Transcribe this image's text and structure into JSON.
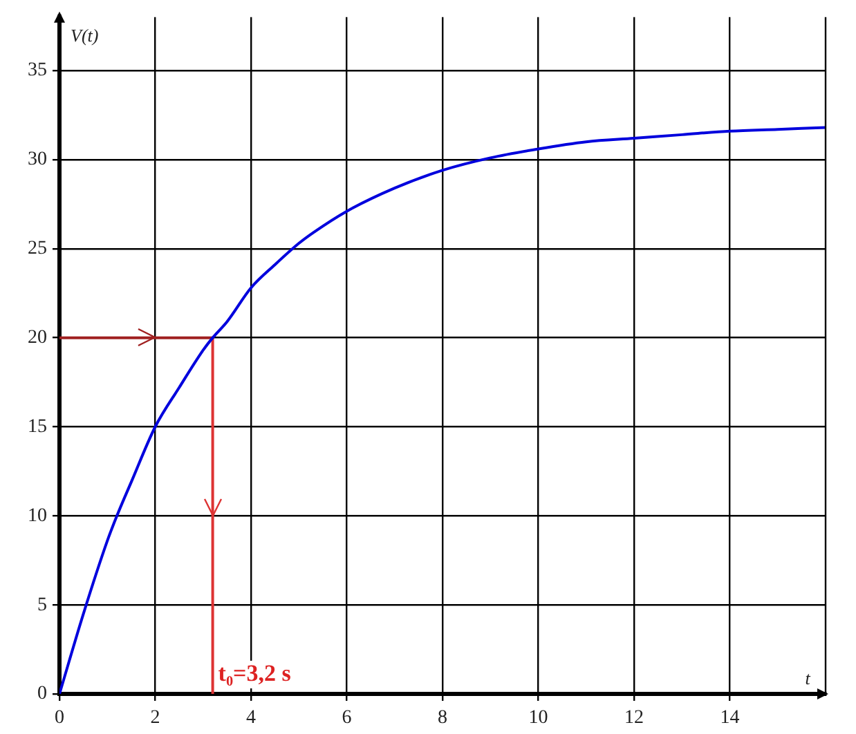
{
  "chart_data": {
    "type": "line",
    "xlabel": "t",
    "ylabel": "V(t)",
    "xlim": [
      0,
      16
    ],
    "ylim": [
      0,
      38
    ],
    "xticks": [
      0,
      2,
      4,
      6,
      8,
      10,
      12,
      14
    ],
    "yticks": [
      0,
      5,
      10,
      15,
      20,
      25,
      30,
      35
    ],
    "grid": true,
    "marker": "none",
    "line_style": "solid",
    "series": [
      {
        "color": "#0000dd",
        "x": [
          0,
          0.5,
          1,
          1.2,
          1.5,
          2,
          2.5,
          3,
          3.2,
          3.5,
          4,
          4.5,
          5,
          5.3,
          6,
          7,
          8,
          9,
          10,
          11,
          12,
          13,
          14,
          15,
          16
        ],
        "values": [
          0,
          4.5,
          8.6,
          10,
          11.9,
          15,
          17.2,
          19.3,
          20,
          20.9,
          22.8,
          24.1,
          25.3,
          25.9,
          27.1,
          28.4,
          29.4,
          30.1,
          30.6,
          31,
          31.2,
          31.4,
          31.6,
          31.7,
          31.8
        ]
      },
      {
        "color": "#a02020",
        "x": [
          0,
          2,
          3.2
        ],
        "values": [
          20,
          20,
          20
        ]
      },
      {
        "color": "#dd3333",
        "x": [
          3.2,
          3.2,
          3.2
        ],
        "values": [
          20,
          10,
          0
        ]
      }
    ],
    "annotations": [
      {
        "text": "t₀=3,2 s",
        "x": 3.2,
        "y": 0
      }
    ]
  }
}
